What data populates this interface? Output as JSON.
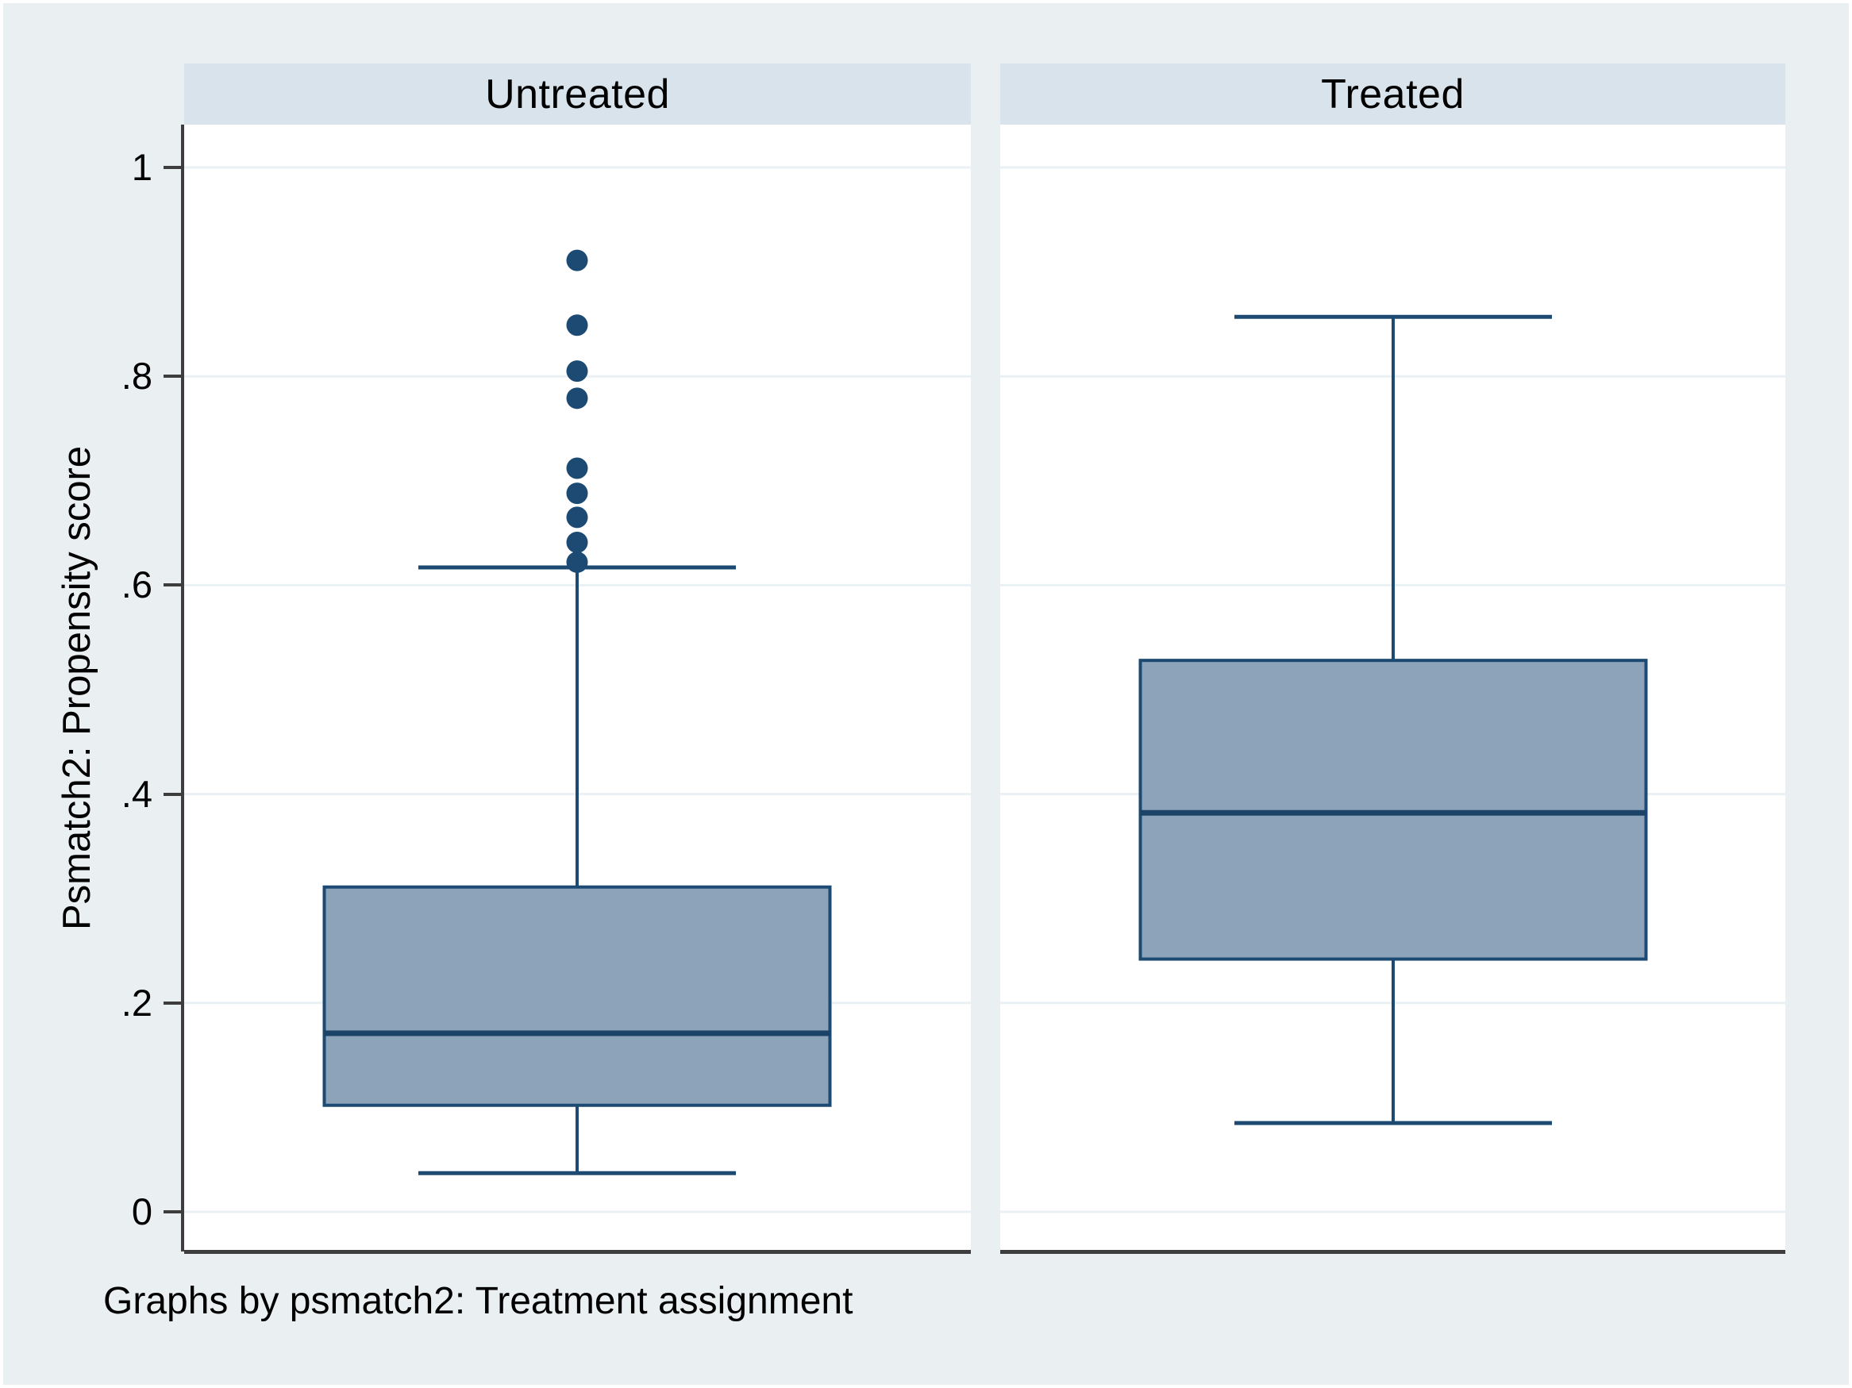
{
  "figure": {
    "caption": "Graphs by psmatch2: Treatment assignment",
    "y_axis": {
      "title": "Psmatch2: Propensity score",
      "tick_labels": [
        "1",
        ".8",
        ".6",
        ".4",
        ".2",
        "0"
      ],
      "tick_values": [
        1,
        0.8,
        0.6,
        0.4,
        0.2,
        0
      ]
    }
  },
  "chart_data": {
    "type": "box",
    "orientation": "vertical",
    "ylim": [
      0,
      1
    ],
    "grid": true,
    "panels": [
      {
        "label": "Untreated",
        "box": {
          "lower_whisker": 0.037,
          "q1": 0.102,
          "median": 0.171,
          "q3": 0.311,
          "upper_whisker": 0.617,
          "outliers": [
            0.911,
            0.849,
            0.805,
            0.779,
            0.712,
            0.688,
            0.665,
            0.641,
            0.622
          ]
        }
      },
      {
        "label": "Treated",
        "box": {
          "lower_whisker": 0.085,
          "q1": 0.242,
          "median": 0.382,
          "q3": 0.528,
          "upper_whisker": 0.857,
          "outliers": []
        }
      }
    ]
  },
  "colors": {
    "background": "#eaeff2",
    "header_band": "#d9e3eb",
    "plot_background": "#ffffff",
    "gridline": "#e9f1f5",
    "axis": "#3d3d3d",
    "box_fill": "#8ca3b9",
    "box_stroke": "#1c4a72",
    "median_stroke": "#1b4267",
    "outlier_fill": "#1c4a72",
    "text": "#000000"
  }
}
